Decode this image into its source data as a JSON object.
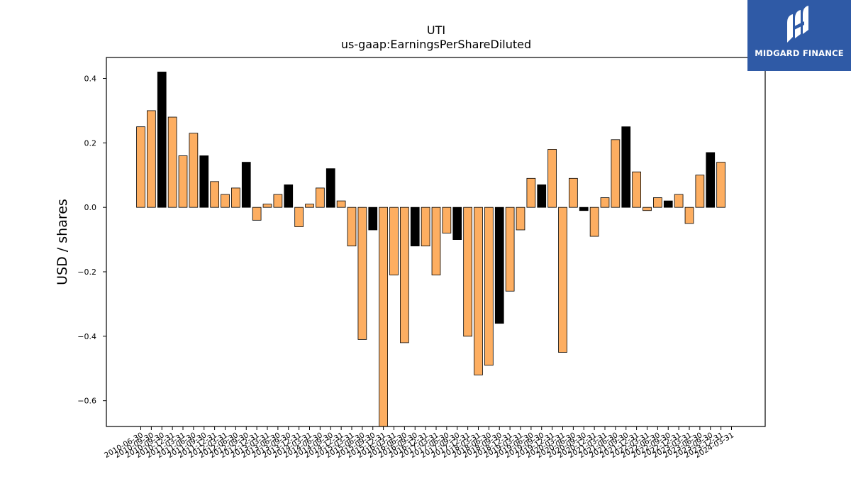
{
  "brand": {
    "name": "MIDGARD FINANCE",
    "bg_color": "#2f5aa6"
  },
  "chart_data": {
    "type": "bar",
    "title": "UTI",
    "subtitle": "us-gaap:EarningsPerShareDiluted",
    "xlabel": "",
    "ylabel": "USD / shares",
    "ylim": [
      -0.68,
      0.465
    ],
    "yticks": [
      0.4,
      0.2,
      0.0,
      -0.2,
      -0.4,
      -0.6
    ],
    "ytick_labels": [
      "0.4",
      "0.2",
      "0.0",
      "−0.2",
      "−0.4",
      "−0.6"
    ],
    "colors": {
      "quarter": "#fdae61",
      "annual": "#000000",
      "edge": "#000000"
    },
    "categories": [
      "2010-06-30",
      "2010-09-30",
      "2010-09-30",
      "2010-12-31",
      "2011-03-31",
      "2011-06-30",
      "2011-09-30",
      "2011-12-31",
      "2012-03-31",
      "2012-06-30",
      "2012-09-30",
      "2012-12-31",
      "2013-03-31",
      "2013-06-30",
      "2013-09-30",
      "2013-12-31",
      "2014-03-31",
      "2014-06-30",
      "2014-09-30",
      "2014-12-31",
      "2015-03-31",
      "2015-06-30",
      "2015-09-30",
      "2015-12-31",
      "2016-03-31",
      "2016-06-30",
      "2016-09-30",
      "2016-12-31",
      "2017-03-31",
      "2017-06-30",
      "2017-09-30",
      "2017-12-31",
      "2018-03-31",
      "2018-06-30",
      "2018-09-30",
      "2018-12-31",
      "2019-03-31",
      "2019-06-30",
      "2019-09-30",
      "2019-12-31",
      "2020-03-31",
      "2020-06-30",
      "2020-09-30",
      "2020-12-31",
      "2021-03-31",
      "2021-06-30",
      "2021-09-30",
      "2021-12-31",
      "2022-03-31",
      "2022-06-30",
      "2022-09-30",
      "2022-12-31",
      "2023-03-31",
      "2023-06-30",
      "2023-09-30",
      "2023-12-31",
      "2024-03-31"
    ],
    "values": [
      0.25,
      0.3,
      0.42,
      0.28,
      0.16,
      0.23,
      0.16,
      0.08,
      0.04,
      0.06,
      0.14,
      -0.04,
      0.01,
      0.04,
      0.07,
      -0.06,
      0.01,
      0.06,
      0.12,
      0.02,
      -0.12,
      -0.41,
      -0.07,
      -0.7,
      -0.21,
      -0.42,
      -0.12,
      -0.12,
      -0.21,
      -0.08,
      -0.1,
      -0.4,
      -0.52,
      -0.49,
      -0.36,
      -0.26,
      -0.07,
      0.09,
      0.07,
      0.18,
      -0.45,
      0.09,
      -0.01,
      -0.09,
      0.03,
      0.21,
      0.25,
      0.11,
      -0.01,
      0.03,
      0.02,
      0.04,
      -0.05,
      0.1,
      0.17,
      0.14,
      null
    ],
    "period_type": [
      "quarter",
      "quarter",
      "annual",
      "quarter",
      "quarter",
      "quarter",
      "annual",
      "quarter",
      "quarter",
      "quarter",
      "annual",
      "quarter",
      "quarter",
      "quarter",
      "annual",
      "quarter",
      "quarter",
      "quarter",
      "annual",
      "quarter",
      "quarter",
      "quarter",
      "annual",
      "quarter",
      "quarter",
      "quarter",
      "annual",
      "quarter",
      "quarter",
      "quarter",
      "annual",
      "quarter",
      "quarter",
      "quarter",
      "annual",
      "quarter",
      "quarter",
      "quarter",
      "annual",
      "quarter",
      "quarter",
      "quarter",
      "annual",
      "quarter",
      "quarter",
      "quarter",
      "annual",
      "quarter",
      "quarter",
      "quarter",
      "annual",
      "quarter",
      "quarter",
      "quarter",
      "annual",
      "quarter",
      "quarter"
    ]
  }
}
